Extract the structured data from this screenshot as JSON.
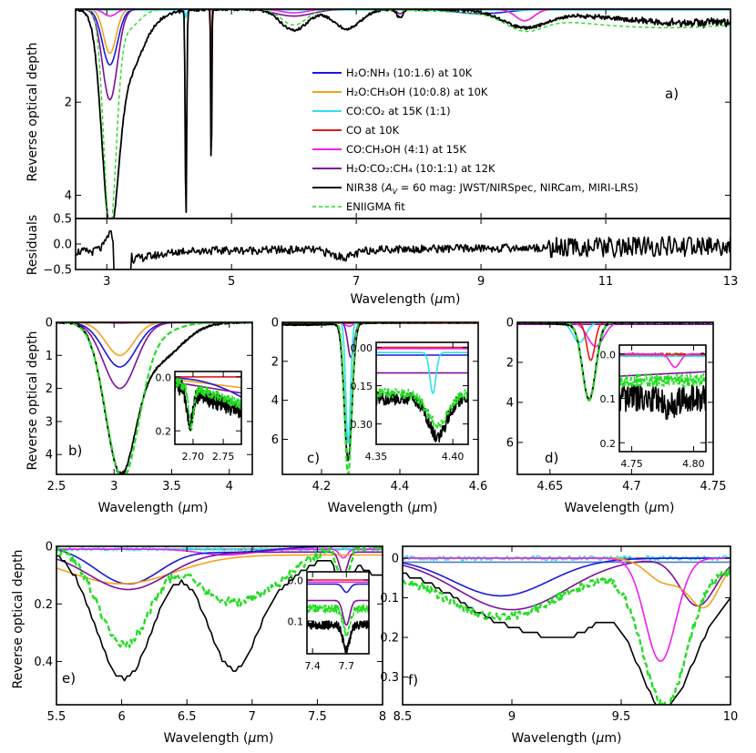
{
  "figure": {
    "wavelength_label": "Wavelength (μm)",
    "wl_a": "Wavelength (",
    "wl_mu": "μ",
    "wl_b": "m)",
    "ylabel_depth": "Reverse optical depth",
    "ylabel_resid": "Residuals"
  },
  "legend": {
    "items": [
      {
        "key": "h2o_nh3",
        "label": "H₂O:NH₃ (10:1.6) at 10K",
        "color": "#1a1ad6"
      },
      {
        "key": "h2o_ch3oh",
        "label": "H₂O:CH₃OH (10:0.8) at 10K",
        "color": "#f4a21c"
      },
      {
        "key": "co_co2",
        "label": "CO:CO₂ at 15K (1:1)",
        "color": "#2fe0f0"
      },
      {
        "key": "co",
        "label": "CO  at 10K",
        "color": "#e81818"
      },
      {
        "key": "co_ch3oh",
        "label": "CO:CH₃OH (4:1) at 15K",
        "color": "#f01ef0"
      },
      {
        "key": "h2o_co2_ch4",
        "label": "H₂O:CO₂:CH₄ (10:1:1) at 12K",
        "color": "#800f9a"
      },
      {
        "key": "nir38",
        "label": "NIR38 (A_V = 60 mag: JWST/NIRSpec, NIRCam, MIRI-LRS)",
        "label_a": "NIR38 (",
        "label_av": "A",
        "label_v": "V",
        "label_b": " = 60 mag: JWST/NIRSpec, NIRCam, MIRI-LRS)",
        "color": "#000000"
      },
      {
        "key": "fit",
        "label": "ENIIGMA fit",
        "color": "#22dd22"
      }
    ]
  },
  "chart_data": [
    {
      "id": "a",
      "panel_label": "a)",
      "type": "line",
      "xlim": [
        2.5,
        13
      ],
      "ylim": [
        4.5,
        0
      ],
      "xticks": [
        3,
        5,
        7,
        9,
        11,
        13
      ],
      "yticks": [
        2,
        4
      ],
      "xlabel": "Wavelength (μm)",
      "ylabel": "Reverse optical depth",
      "description": "Full spectrum 2.5–13 μm with ice component fits",
      "features_um": {
        "h2o_band": 3.05,
        "co2_band": 4.27,
        "co_band": 4.67,
        "band_6": 6.0,
        "band_6_85": 6.85,
        "band_9_7": 9.7
      },
      "peak_depth": {
        "nir38_3um": 3.9,
        "fit_3um": 4.5,
        "h2o_co2_ch4_3um": 1.95,
        "h2o_nh3_3um": 1.2,
        "h2o_ch3oh_3um": 0.95
      }
    },
    {
      "id": "a_residuals",
      "type": "line",
      "xlim": [
        2.5,
        13
      ],
      "ylim": [
        -0.5,
        0.5
      ],
      "yticks": [
        0.5,
        0.0,
        -0.5
      ],
      "ytick_labels": [
        "0.5",
        "0.0",
        "−0.5"
      ],
      "ylabel": "Residuals"
    },
    {
      "id": "b",
      "panel_label": "b)",
      "type": "line",
      "xlim": [
        2.5,
        4.2
      ],
      "ylim": [
        4.6,
        0
      ],
      "xticks": [
        2.5,
        3.0,
        3.5,
        4.0
      ],
      "yticks": [
        0,
        1,
        2,
        3,
        4
      ],
      "xlabel": "Wavelength (μm)",
      "ylabel": "Reverse optical depth",
      "peak_wavelength": 3.05,
      "peak_depth": {
        "nir38": 4.1,
        "fit": 4.5,
        "h2o_co2_ch4": 2.0,
        "h2o_nh3": 1.35,
        "h2o_ch3oh": 1.0
      },
      "inset": {
        "xlim": [
          2.67,
          2.78
        ],
        "ylim": [
          0.25,
          -0.02
        ],
        "xticks": [
          2.7,
          2.75
        ],
        "yticks": [
          0.0,
          0.2
        ],
        "xtick_labels": [
          "2.70",
          "2.75"
        ],
        "ytick_labels": [
          "0.0",
          "0.2"
        ]
      }
    },
    {
      "id": "c",
      "panel_label": "c)",
      "type": "line",
      "xlim": [
        4.1,
        4.6
      ],
      "ylim": [
        7.8,
        0
      ],
      "xticks": [
        4.2,
        4.4,
        4.6
      ],
      "yticks": [
        0,
        2,
        4,
        6
      ],
      "xlabel": "Wavelength (μm)",
      "peak_wavelength": 4.27,
      "peak_depth": {
        "nir38": 7.0,
        "fit": 7.8,
        "co_co2": 6.2,
        "h2o_co2_ch4": 1.8
      },
      "inset": {
        "xlim": [
          4.35,
          4.41
        ],
        "ylim": [
          0.38,
          -0.02
        ],
        "xticks": [
          4.35,
          4.4
        ],
        "yticks": [
          0.0,
          0.15,
          0.3
        ],
        "xtick_labels": [
          "4.35",
          "4.40"
        ],
        "ytick_labels": [
          "0.00",
          "0.15",
          "0.30"
        ]
      }
    },
    {
      "id": "d",
      "panel_label": "d)",
      "type": "line",
      "xlim": [
        4.63,
        4.75
      ],
      "ylim": [
        7.6,
        0
      ],
      "xticks": [
        4.65,
        4.7,
        4.75
      ],
      "yticks": [
        0,
        2,
        4,
        6
      ],
      "xlabel": "Wavelength (μm)",
      "peak_wavelength": 4.675,
      "peak_depth": {
        "nir38": 3.8,
        "fit": 3.9,
        "co": 1.9,
        "co_ch3oh": 1.2,
        "co_co2": 1.0
      },
      "inset": {
        "xlim": [
          4.74,
          4.81
        ],
        "ylim": [
          0.22,
          -0.02
        ],
        "xticks": [
          4.75,
          4.8
        ],
        "yticks": [
          0.0,
          0.1,
          0.2
        ],
        "xtick_labels": [
          "4.75",
          "4.80"
        ],
        "ytick_labels": [
          "0.0",
          "0.1",
          "0.2"
        ]
      }
    },
    {
      "id": "e",
      "panel_label": "e)",
      "type": "line",
      "xlim": [
        5.5,
        8.0
      ],
      "ylim": [
        0.55,
        0
      ],
      "xticks": [
        5.5,
        6.0,
        6.5,
        7.0,
        7.5,
        8.0
      ],
      "yticks": [
        0.0,
        0.2,
        0.4
      ],
      "xlabel": "Wavelength (μm)",
      "ylabel": "Reverse optical depth",
      "peak_depth": {
        "nir38_6um": 0.46,
        "nir38_6_85um": 0.42,
        "fit_6um": 0.34,
        "nir38_7_7um": 0.18
      },
      "inset": {
        "xlim": [
          7.35,
          7.9
        ],
        "ylim": [
          0.18,
          -0.02
        ],
        "xticks": [
          7.4,
          7.7
        ],
        "yticks": [
          0.0,
          0.1
        ],
        "xtick_labels": [
          "7.4",
          "7.7"
        ],
        "ytick_labels": [
          "0.0",
          "0.1"
        ]
      }
    },
    {
      "id": "f",
      "panel_label": "f)",
      "type": "line",
      "xlim": [
        8.5,
        10.0
      ],
      "ylim": [
        0.37,
        -0.03
      ],
      "xticks": [
        8.5,
        9.0,
        9.5,
        10.0
      ],
      "yticks": [
        0.0,
        0.1,
        0.2,
        0.3
      ],
      "xlabel": "Wavelength (μm)",
      "peak_depth": {
        "nir38_9_7um": 0.35,
        "fit_9_7um": 0.34,
        "h2o_ch3oh": 0.26,
        "h2o_nh3_9um": 0.095,
        "h2o_co2_ch4_9um": 0.13
      }
    }
  ]
}
